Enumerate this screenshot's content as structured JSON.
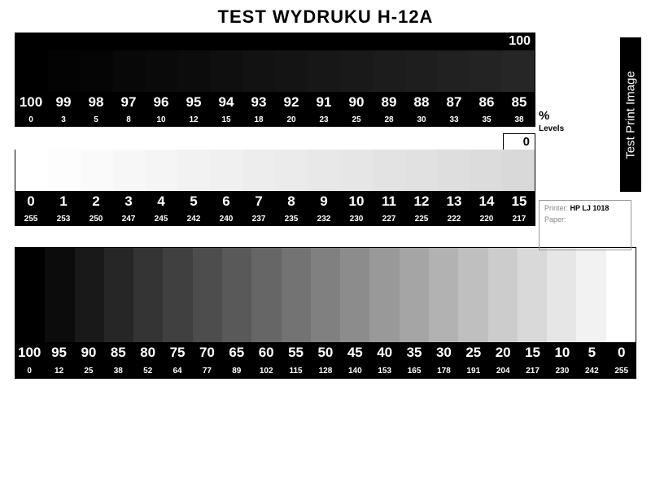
{
  "title": "TEST WYDRUKU H-12A",
  "vertical_label": "Test Print Image",
  "side": {
    "percent_symbol": "%",
    "levels_label": "Levels"
  },
  "info": {
    "printer_label": "Printer:",
    "printer_value": "HP LJ 1018",
    "paper_label": "Paper:",
    "paper_value": ""
  },
  "strip1": {
    "type": "grayscale-step",
    "banner": "100",
    "cells": [
      {
        "pct": "100",
        "lvl": "0",
        "gray": 0
      },
      {
        "pct": "99",
        "lvl": "3",
        "gray": 3
      },
      {
        "pct": "98",
        "lvl": "5",
        "gray": 5
      },
      {
        "pct": "97",
        "lvl": "8",
        "gray": 8
      },
      {
        "pct": "96",
        "lvl": "10",
        "gray": 10
      },
      {
        "pct": "95",
        "lvl": "12",
        "gray": 12
      },
      {
        "pct": "94",
        "lvl": "15",
        "gray": 15
      },
      {
        "pct": "93",
        "lvl": "18",
        "gray": 18
      },
      {
        "pct": "92",
        "lvl": "20",
        "gray": 20
      },
      {
        "pct": "91",
        "lvl": "23",
        "gray": 23
      },
      {
        "pct": "90",
        "lvl": "25",
        "gray": 25
      },
      {
        "pct": "89",
        "lvl": "28",
        "gray": 28
      },
      {
        "pct": "88",
        "lvl": "30",
        "gray": 30
      },
      {
        "pct": "87",
        "lvl": "33",
        "gray": 33
      },
      {
        "pct": "86",
        "lvl": "35",
        "gray": 35
      },
      {
        "pct": "85",
        "lvl": "38",
        "gray": 38
      }
    ],
    "pct_font_size": 17,
    "lvl_font_size": 10,
    "text_color": "#ffffff"
  },
  "strip2": {
    "type": "grayscale-step",
    "banner": "0",
    "cells": [
      {
        "pct": "0",
        "lvl": "255",
        "gray": 255
      },
      {
        "pct": "1",
        "lvl": "253",
        "gray": 253
      },
      {
        "pct": "2",
        "lvl": "250",
        "gray": 250
      },
      {
        "pct": "3",
        "lvl": "247",
        "gray": 247
      },
      {
        "pct": "4",
        "lvl": "245",
        "gray": 245
      },
      {
        "pct": "5",
        "lvl": "242",
        "gray": 242
      },
      {
        "pct": "6",
        "lvl": "240",
        "gray": 240
      },
      {
        "pct": "7",
        "lvl": "237",
        "gray": 237
      },
      {
        "pct": "8",
        "lvl": "235",
        "gray": 235
      },
      {
        "pct": "9",
        "lvl": "232",
        "gray": 232
      },
      {
        "pct": "10",
        "lvl": "230",
        "gray": 230
      },
      {
        "pct": "11",
        "lvl": "227",
        "gray": 227
      },
      {
        "pct": "12",
        "lvl": "225",
        "gray": 225
      },
      {
        "pct": "13",
        "lvl": "222",
        "gray": 222
      },
      {
        "pct": "14",
        "lvl": "220",
        "gray": 220
      },
      {
        "pct": "15",
        "lvl": "217",
        "gray": 217
      }
    ],
    "pct_font_size": 17,
    "lvl_font_size": 10,
    "text_color": "#ffffff"
  },
  "wide": {
    "type": "grayscale-step",
    "cells": [
      {
        "pct": "100",
        "lvl": "0",
        "gray": 0
      },
      {
        "pct": "95",
        "lvl": "12",
        "gray": 12
      },
      {
        "pct": "90",
        "lvl": "25",
        "gray": 25
      },
      {
        "pct": "85",
        "lvl": "38",
        "gray": 38
      },
      {
        "pct": "80",
        "lvl": "52",
        "gray": 52
      },
      {
        "pct": "75",
        "lvl": "64",
        "gray": 64
      },
      {
        "pct": "70",
        "lvl": "77",
        "gray": 77
      },
      {
        "pct": "65",
        "lvl": "89",
        "gray": 89
      },
      {
        "pct": "60",
        "lvl": "102",
        "gray": 102
      },
      {
        "pct": "55",
        "lvl": "115",
        "gray": 115
      },
      {
        "pct": "50",
        "lvl": "128",
        "gray": 128
      },
      {
        "pct": "45",
        "lvl": "140",
        "gray": 140
      },
      {
        "pct": "40",
        "lvl": "153",
        "gray": 153
      },
      {
        "pct": "35",
        "lvl": "165",
        "gray": 165
      },
      {
        "pct": "30",
        "lvl": "178",
        "gray": 178
      },
      {
        "pct": "25",
        "lvl": "191",
        "gray": 191
      },
      {
        "pct": "20",
        "lvl": "204",
        "gray": 204
      },
      {
        "pct": "15",
        "lvl": "217",
        "gray": 217
      },
      {
        "pct": "10",
        "lvl": "230",
        "gray": 230
      },
      {
        "pct": "5",
        "lvl": "242",
        "gray": 242
      },
      {
        "pct": "0",
        "lvl": "255",
        "gray": 255
      }
    ],
    "pct_font_size": 17,
    "lvl_font_size": 10
  },
  "colors": {
    "page_bg": "#ffffff",
    "black": "#000000",
    "infobox_border": "#9a9a9a",
    "infobox_label": "#888888"
  },
  "fonts": {
    "title_size": 22,
    "title_weight": 900,
    "family": "Arial"
  }
}
